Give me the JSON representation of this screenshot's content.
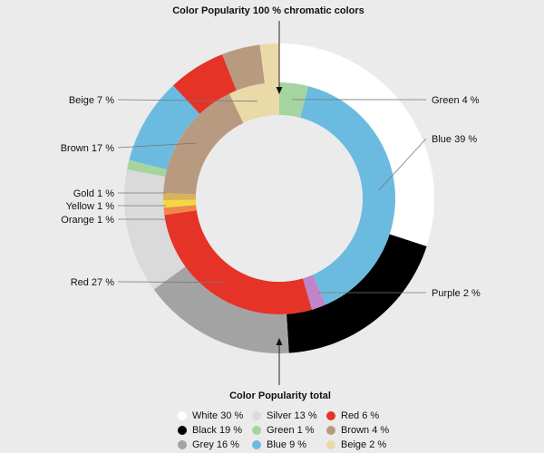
{
  "chart_data": [
    {
      "type": "pie",
      "variant": "donut-inner",
      "title": "Color Popularity  100 % chromatic colors",
      "slices": [
        {
          "label": "Green 4 %",
          "name": "Green",
          "value": 4,
          "color": "#a6d4a0"
        },
        {
          "label": "Blue 39 %",
          "name": "Blue",
          "value": 39,
          "color": "#6bbbe0"
        },
        {
          "label": "Purple 2 %",
          "name": "Purple",
          "value": 2,
          "color": "#c084c8"
        },
        {
          "label": "Red 27 %",
          "name": "Red",
          "value": 27,
          "color": "#e63327"
        },
        {
          "label": "Orange 1 %",
          "name": "Orange",
          "value": 1,
          "color": "#f0874a"
        },
        {
          "label": "Yellow 1 %",
          "name": "Yellow",
          "value": 1,
          "color": "#f5d742"
        },
        {
          "label": "Gold 1 %",
          "name": "Gold",
          "value": 1,
          "color": "#d9b25a"
        },
        {
          "label": "Brown 17 %",
          "name": "Brown",
          "value": 17,
          "color": "#b89a80"
        },
        {
          "label": "Beige 7 %",
          "name": "Beige",
          "value": 7,
          "color": "#eadaa8"
        }
      ]
    },
    {
      "type": "pie",
      "variant": "donut-outer",
      "title": "Color Popularity total",
      "slices": [
        {
          "label": "White 30 %",
          "name": "White",
          "value": 30,
          "color": "#ffffff"
        },
        {
          "label": "Black 19 %",
          "name": "Black",
          "value": 19,
          "color": "#000000"
        },
        {
          "label": "Grey 16 %",
          "name": "Grey",
          "value": 16,
          "color": "#a3a3a3"
        },
        {
          "label": "Silver 13 %",
          "name": "Silver",
          "value": 13,
          "color": "#dadada"
        },
        {
          "label": "Green 1 %",
          "name": "Green",
          "value": 1,
          "color": "#a6d4a0"
        },
        {
          "label": "Blue 9 %",
          "name": "Blue",
          "value": 9,
          "color": "#6bbbe0"
        },
        {
          "label": "Red 6 %",
          "name": "Red",
          "value": 6,
          "color": "#e63327"
        },
        {
          "label": "Brown 4 %",
          "name": "Brown",
          "value": 4,
          "color": "#b89a80"
        },
        {
          "label": "Beige 2 %",
          "name": "Beige",
          "value": 2,
          "color": "#eadaa8"
        }
      ],
      "legend": [
        {
          "label": "White 30 %",
          "color": "#ffffff"
        },
        {
          "label": "Silver 13 %",
          "color": "#dadada"
        },
        {
          "label": "Red 6 %",
          "color": "#e63327"
        },
        {
          "label": "Black 19 %",
          "color": "#000000"
        },
        {
          "label": "Green 1 %",
          "color": "#a6d4a0"
        },
        {
          "label": "Brown 4 %",
          "color": "#b89a80"
        },
        {
          "label": "Grey 16 %",
          "color": "#a3a3a3"
        },
        {
          "label": "Blue 9 %",
          "color": "#6bbbe0"
        },
        {
          "label": "Beige 2 %",
          "color": "#eadaa8"
        }
      ],
      "legend_placement": "bottom"
    }
  ]
}
